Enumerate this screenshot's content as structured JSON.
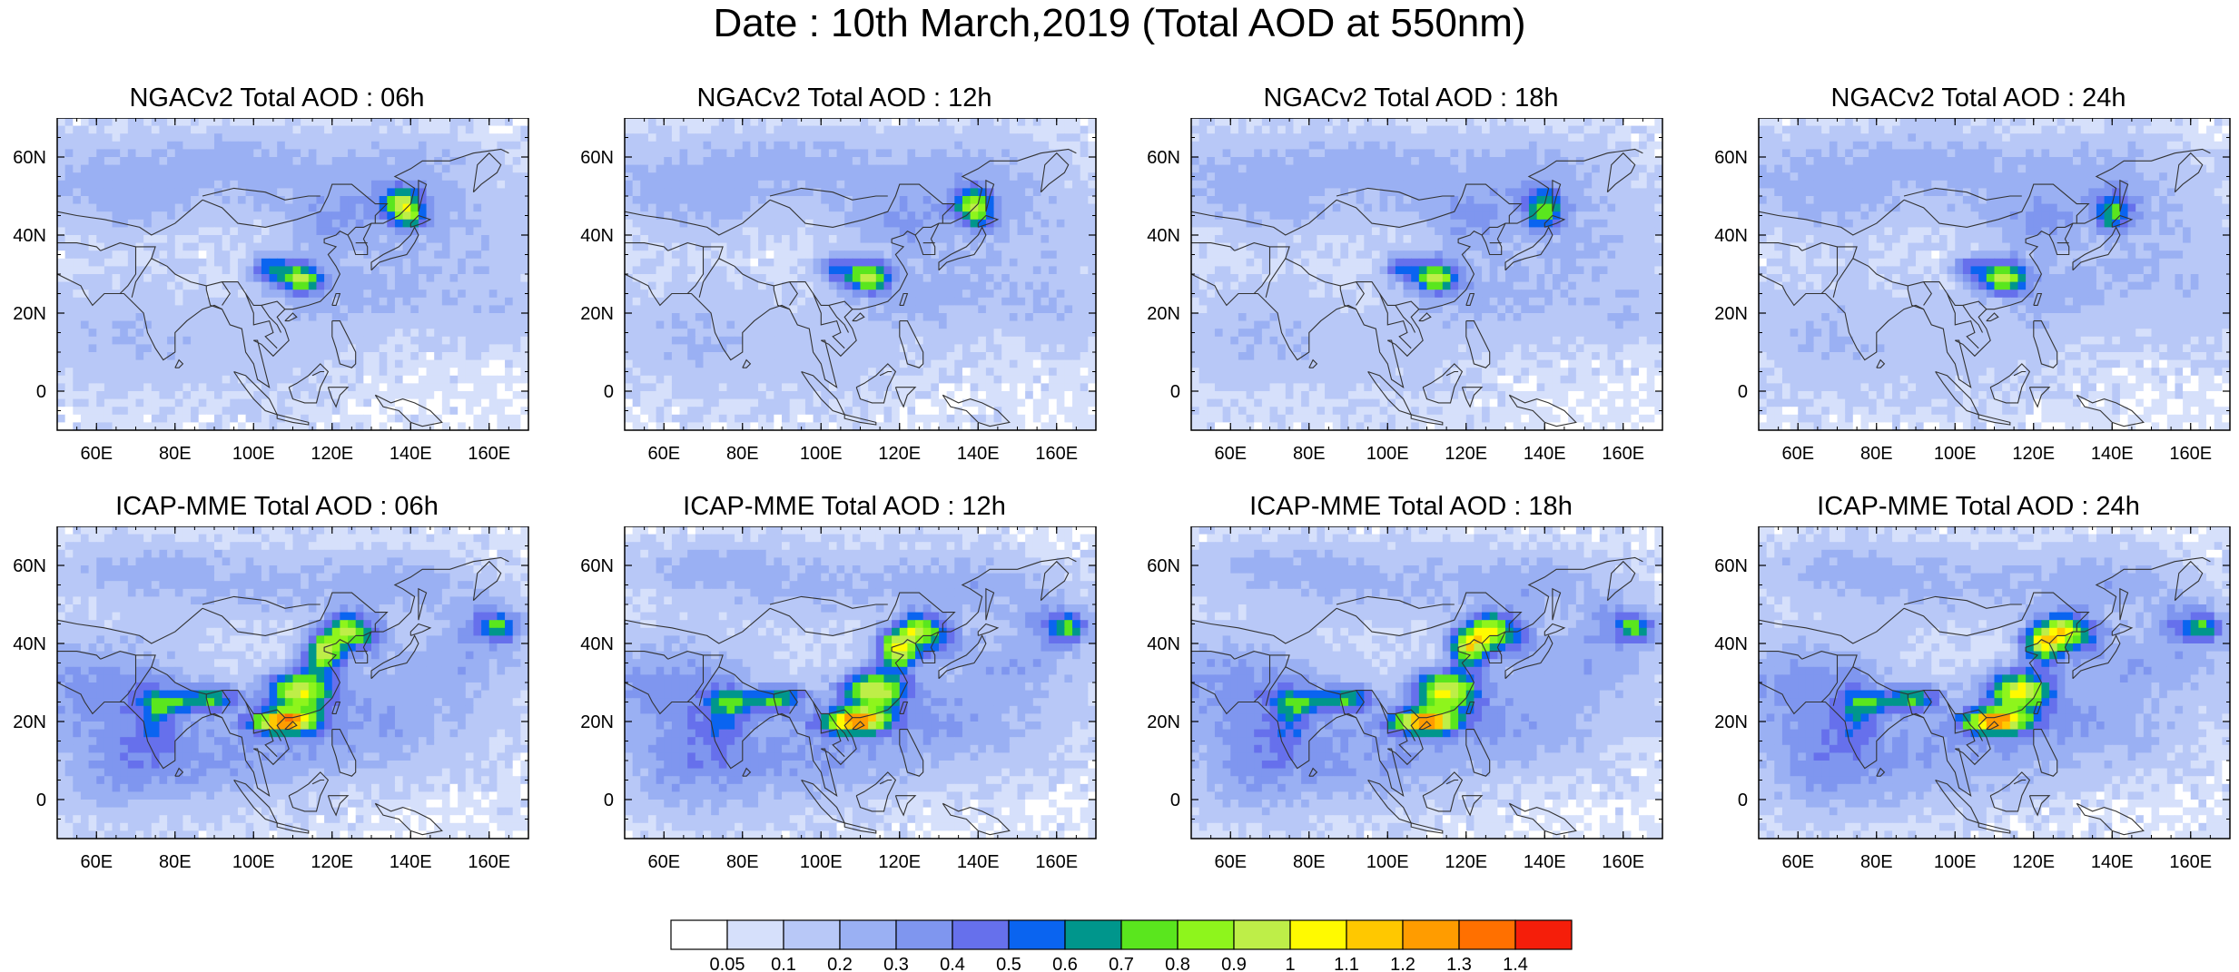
{
  "title": "Date : 10th March,2019 (Total AOD at 550nm)",
  "map_extent": {
    "lon": [
      50,
      170
    ],
    "lat": [
      -10,
      70
    ]
  },
  "lon_ticks": [
    "60E",
    "80E",
    "100E",
    "120E",
    "140E",
    "160E"
  ],
  "lat_ticks": [
    "60N",
    "40N",
    "20N",
    "0"
  ],
  "panels": [
    {
      "title": "NGACv2 Total AOD : 06h",
      "model": "NGACv2",
      "hour": "06h"
    },
    {
      "title": "NGACv2 Total AOD : 12h",
      "model": "NGACv2",
      "hour": "12h"
    },
    {
      "title": "NGACv2 Total AOD : 18h",
      "model": "NGACv2",
      "hour": "18h"
    },
    {
      "title": "NGACv2 Total AOD : 24h",
      "model": "NGACv2",
      "hour": "24h"
    },
    {
      "title": "ICAP-MME Total AOD : 06h",
      "model": "ICAP-MME",
      "hour": "06h"
    },
    {
      "title": "ICAP-MME Total AOD : 12h",
      "model": "ICAP-MME",
      "hour": "12h"
    },
    {
      "title": "ICAP-MME Total AOD : 18h",
      "model": "ICAP-MME",
      "hour": "18h"
    },
    {
      "title": "ICAP-MME Total AOD : 24h",
      "model": "ICAP-MME",
      "hour": "24h"
    }
  ],
  "colorbar": {
    "levels": [
      "0.05",
      "0.1",
      "0.2",
      "0.3",
      "0.4",
      "0.5",
      "0.6",
      "0.7",
      "0.8",
      "0.9",
      "1",
      "1.1",
      "1.2",
      "1.3",
      "1.4"
    ],
    "colors": [
      "#ffffff",
      "#d6e0fb",
      "#b8c8f7",
      "#9ab0f3",
      "#7f96ef",
      "#6670ec",
      "#0a64f0",
      "#00968c",
      "#5ae61e",
      "#8ef51c",
      "#beee48",
      "#fffa00",
      "#ffc800",
      "#ff9c00",
      "#ff7000",
      "#f51e0a"
    ]
  }
}
